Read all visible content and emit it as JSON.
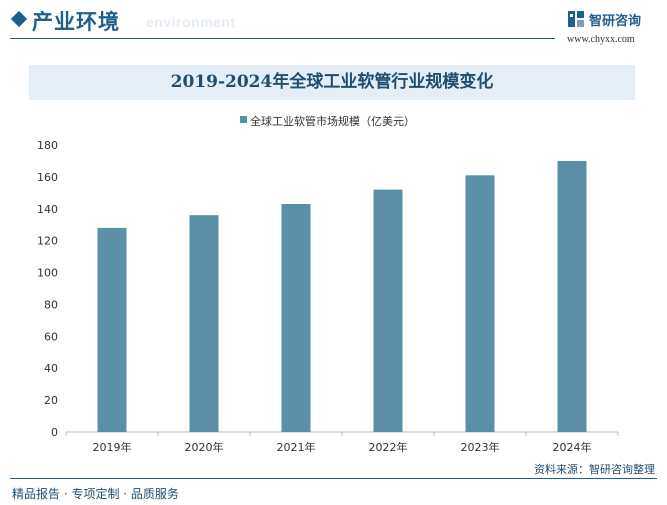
{
  "header": {
    "title": "产业环境",
    "subtitle": "environment"
  },
  "brand": {
    "name": "智研咨询",
    "url": "www.chyxx.com",
    "color": "#1f5f8b"
  },
  "chart_data": {
    "type": "bar",
    "title": "2019-2024年全球工业软管行业规模变化",
    "categories": [
      "2019年",
      "2020年",
      "2021年",
      "2022年",
      "2023年",
      "2024年"
    ],
    "series": [
      {
        "name": "全球工业软管市场规模（亿美元）",
        "values": [
          128,
          136,
          143,
          152,
          161,
          170
        ],
        "color": "#5b8fa8"
      }
    ],
    "xlabel": "",
    "ylabel": "",
    "ylim": [
      0,
      180
    ],
    "yticks": [
      0,
      20,
      40,
      60,
      80,
      100,
      120,
      140,
      160,
      180
    ],
    "grid": false,
    "legend_position": "top-left"
  },
  "footer": {
    "source": "资料来源：智研咨询整理",
    "tagline": "精品报告 · 专项定制 · 品质服务"
  }
}
